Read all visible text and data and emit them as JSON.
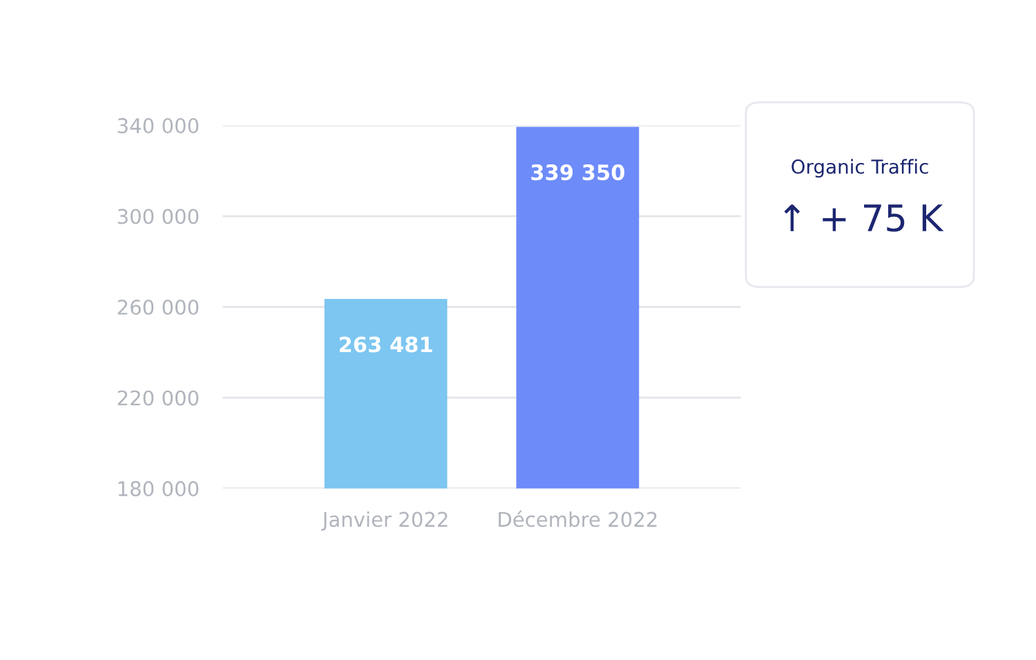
{
  "chart_data": {
    "type": "bar",
    "categories": [
      "Janvier 2022",
      "Décembre 2022"
    ],
    "values": [
      263481,
      339350
    ],
    "colors": [
      "#7cc6f1",
      "#6d8bf9"
    ],
    "value_labels": [
      "263 481",
      "339 350"
    ],
    "ylim": [
      180000,
      340000
    ],
    "yticks": [
      {
        "value": 180000,
        "label": "180 000"
      },
      {
        "value": 220000,
        "label": "220 000"
      },
      {
        "value": 260000,
        "label": "260 000"
      },
      {
        "value": 300000,
        "label": "300 000"
      },
      {
        "value": 340000,
        "label": "340 000"
      }
    ],
    "grid": "y",
    "annotations": [
      "Organic Traffic",
      "↑ + 75 K"
    ]
  }
}
